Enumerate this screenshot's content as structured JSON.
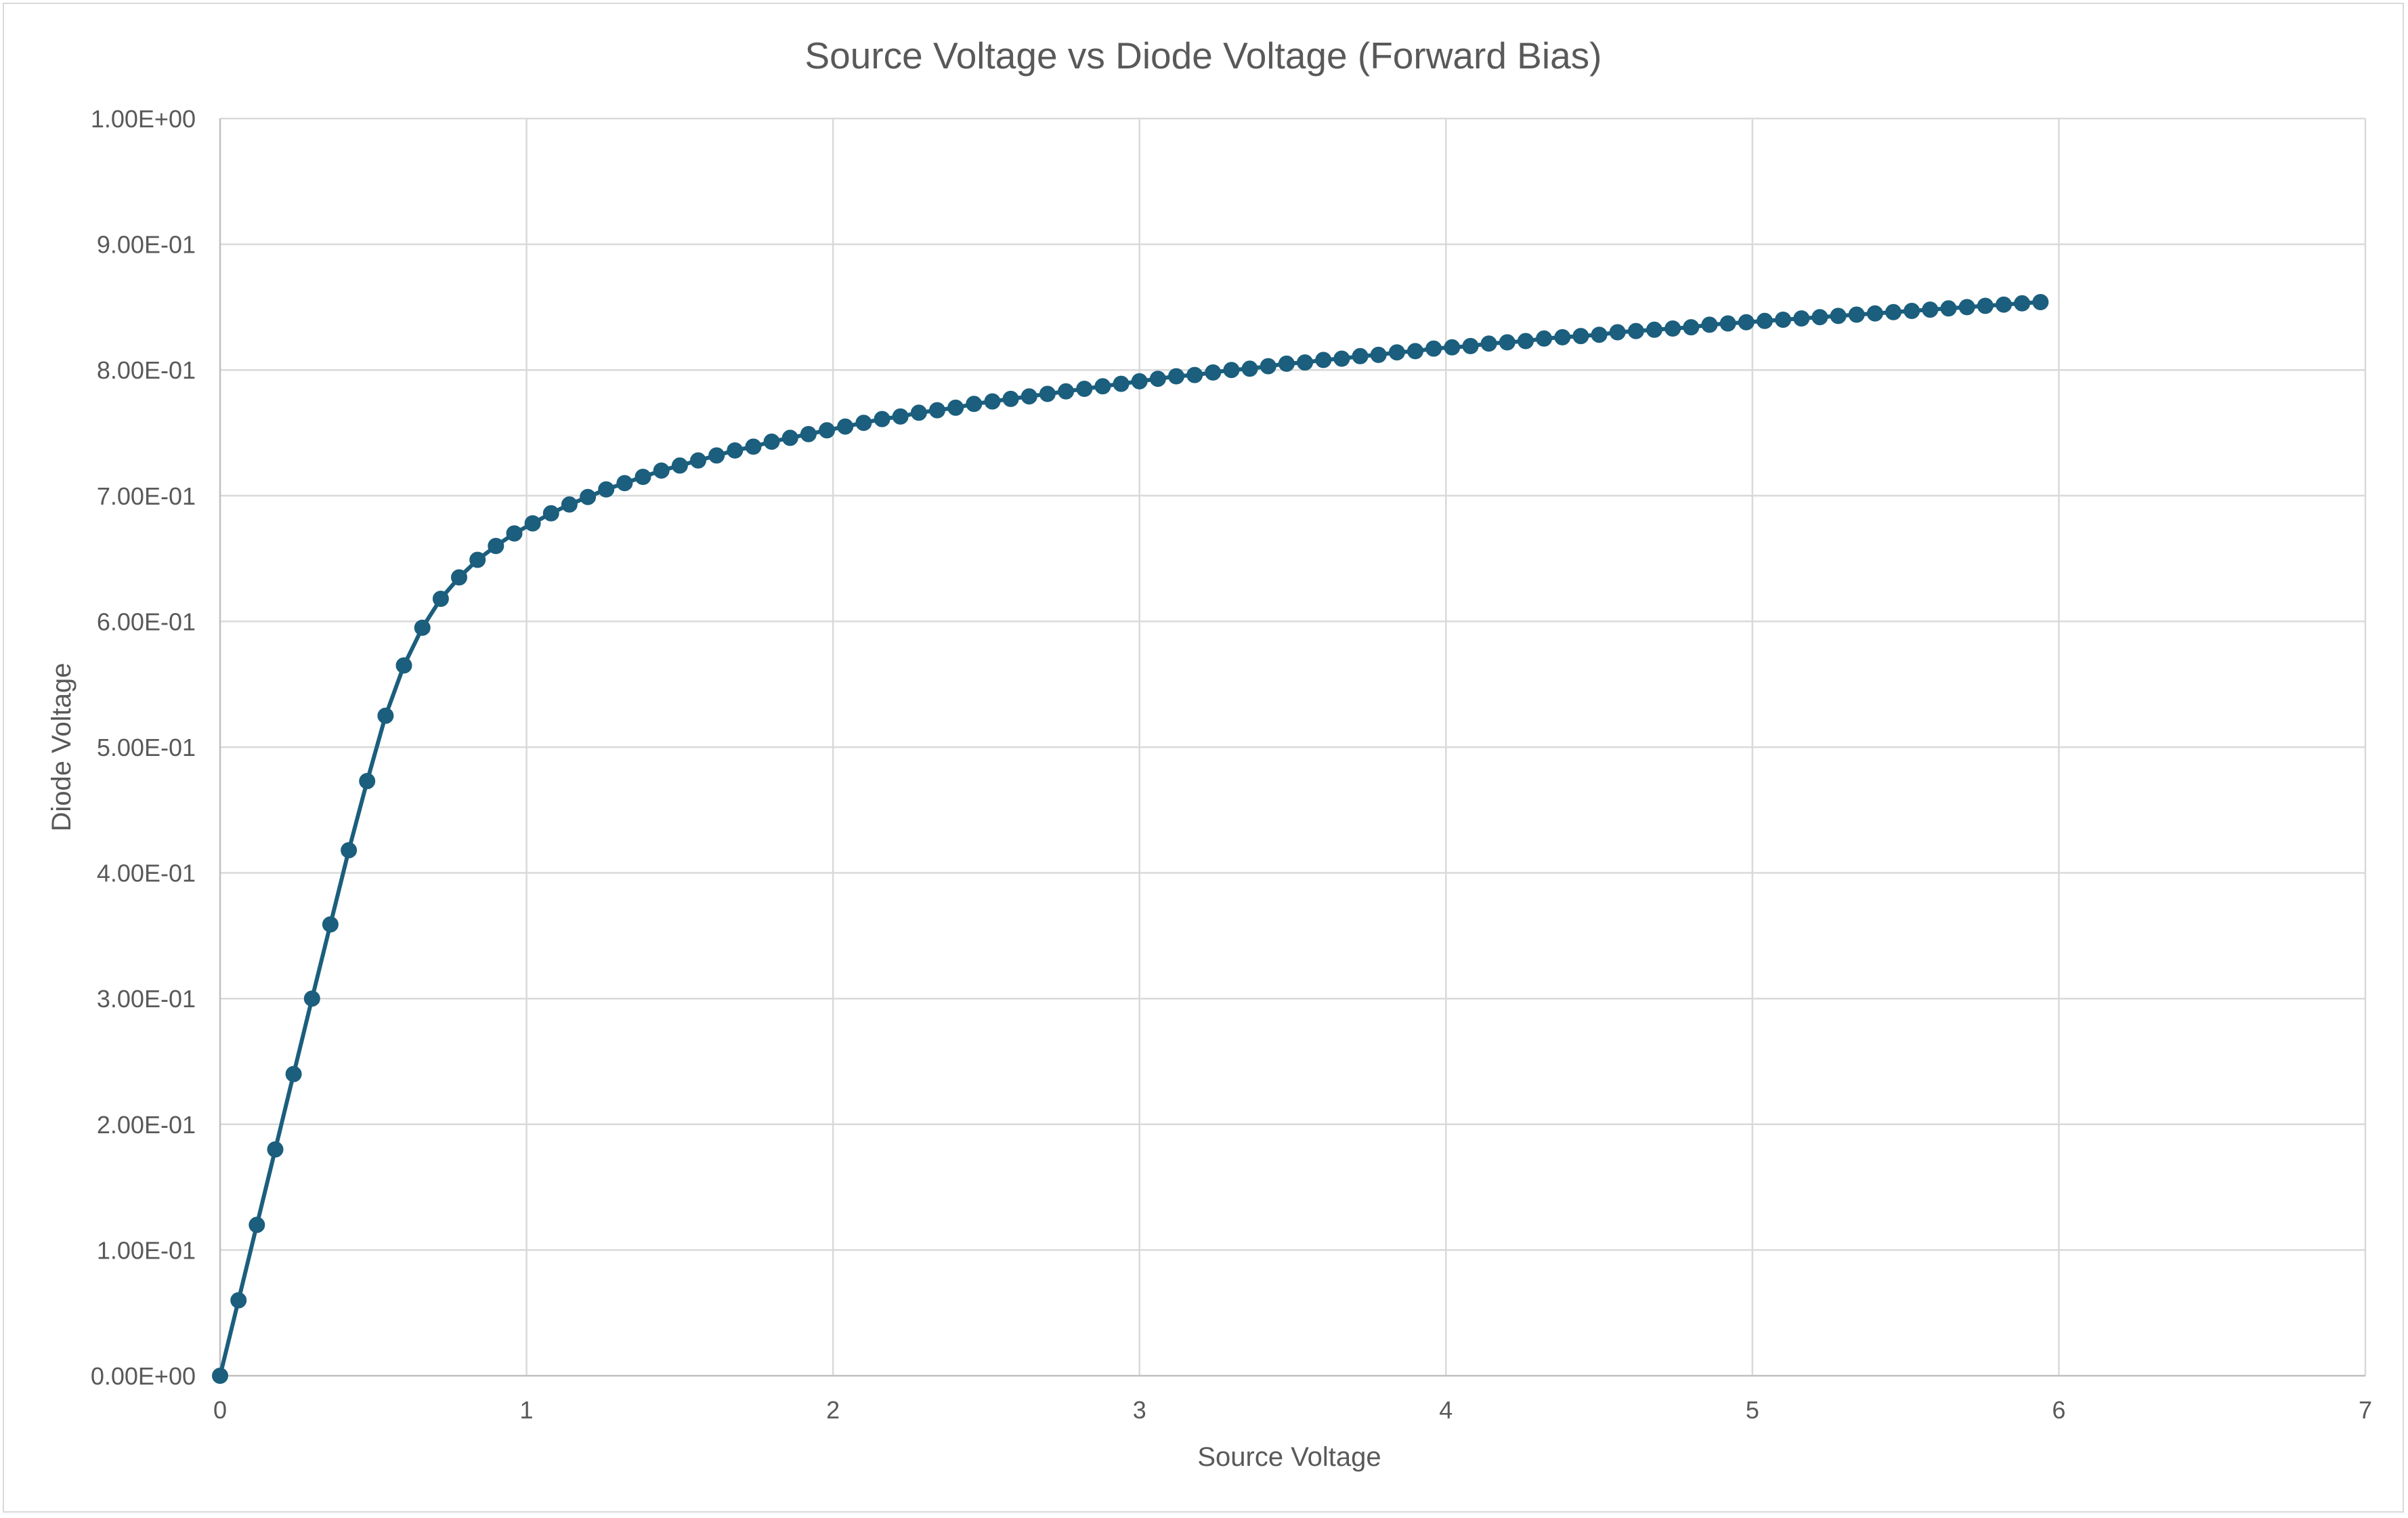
{
  "chart_data": {
    "type": "scatter",
    "title": "Source Voltage vs Diode Voltage (Forward Bias)",
    "xlabel": "Source Voltage",
    "ylabel": "Diode Voltage",
    "xlim": [
      0,
      7
    ],
    "ylim": [
      0,
      1
    ],
    "x_ticks": [
      "0",
      "1",
      "2",
      "3",
      "4",
      "5",
      "6",
      "7"
    ],
    "y_ticks": [
      "0.00E+00",
      "1.00E-01",
      "2.00E-01",
      "3.00E-01",
      "4.00E-01",
      "5.00E-01",
      "6.00E-01",
      "7.00E-01",
      "8.00E-01",
      "9.00E-01",
      "1.00E+00"
    ],
    "grid": true,
    "legend": "none",
    "series_color": "#1b5e7d",
    "series": [
      {
        "x": [
          0,
          0.06,
          0.12,
          0.18,
          0.24,
          0.3,
          0.36,
          0.42,
          0.48,
          0.54,
          0.6,
          0.66,
          0.72,
          0.78,
          0.84,
          0.9,
          0.96,
          1.02,
          1.08,
          1.14,
          1.2,
          1.26,
          1.32,
          1.38,
          1.44,
          1.5,
          1.56,
          1.62,
          1.68,
          1.74,
          1.8,
          1.86,
          1.92,
          1.98,
          2.04,
          2.1,
          2.16,
          2.22,
          2.28,
          2.34,
          2.4,
          2.46,
          2.52,
          2.58,
          2.64,
          2.7,
          2.76,
          2.82,
          2.88,
          2.94,
          3,
          3.06,
          3.12,
          3.18,
          3.24,
          3.3,
          3.36,
          3.42,
          3.48,
          3.54,
          3.6,
          3.66,
          3.72,
          3.78,
          3.84,
          3.9,
          3.96,
          4.02,
          4.08,
          4.14,
          4.2,
          4.26,
          4.32,
          4.38,
          4.44,
          4.5,
          4.56,
          4.62,
          4.68,
          4.74,
          4.8,
          4.86,
          4.92,
          4.98,
          5.04,
          5.1,
          5.16,
          5.22,
          5.28,
          5.34,
          5.4,
          5.46,
          5.52,
          5.58,
          5.64,
          5.7,
          5.76,
          5.82,
          5.88,
          5.94
        ],
        "y": [
          0,
          0.06,
          0.12,
          0.18,
          0.24,
          0.3,
          0.359,
          0.418,
          0.473,
          0.525,
          0.565,
          0.595,
          0.618,
          0.635,
          0.649,
          0.66,
          0.67,
          0.678,
          0.686,
          0.693,
          0.699,
          0.705,
          0.71,
          0.715,
          0.72,
          0.724,
          0.728,
          0.732,
          0.736,
          0.739,
          0.743,
          0.746,
          0.749,
          0.752,
          0.755,
          0.758,
          0.761,
          0.763,
          0.766,
          0.768,
          0.77,
          0.773,
          0.775,
          0.777,
          0.779,
          0.781,
          0.783,
          0.785,
          0.787,
          0.789,
          0.791,
          0.793,
          0.795,
          0.796,
          0.798,
          0.8,
          0.801,
          0.803,
          0.805,
          0.806,
          0.808,
          0.809,
          0.811,
          0.812,
          0.814,
          0.815,
          0.817,
          0.818,
          0.819,
          0.821,
          0.822,
          0.823,
          0.825,
          0.826,
          0.827,
          0.828,
          0.83,
          0.831,
          0.832,
          0.833,
          0.834,
          0.836,
          0.837,
          0.838,
          0.839,
          0.84,
          0.841,
          0.842,
          0.843,
          0.844,
          0.845,
          0.846,
          0.847,
          0.848,
          0.849,
          0.85,
          0.851,
          0.852,
          0.853,
          0.854
        ]
      }
    ]
  }
}
